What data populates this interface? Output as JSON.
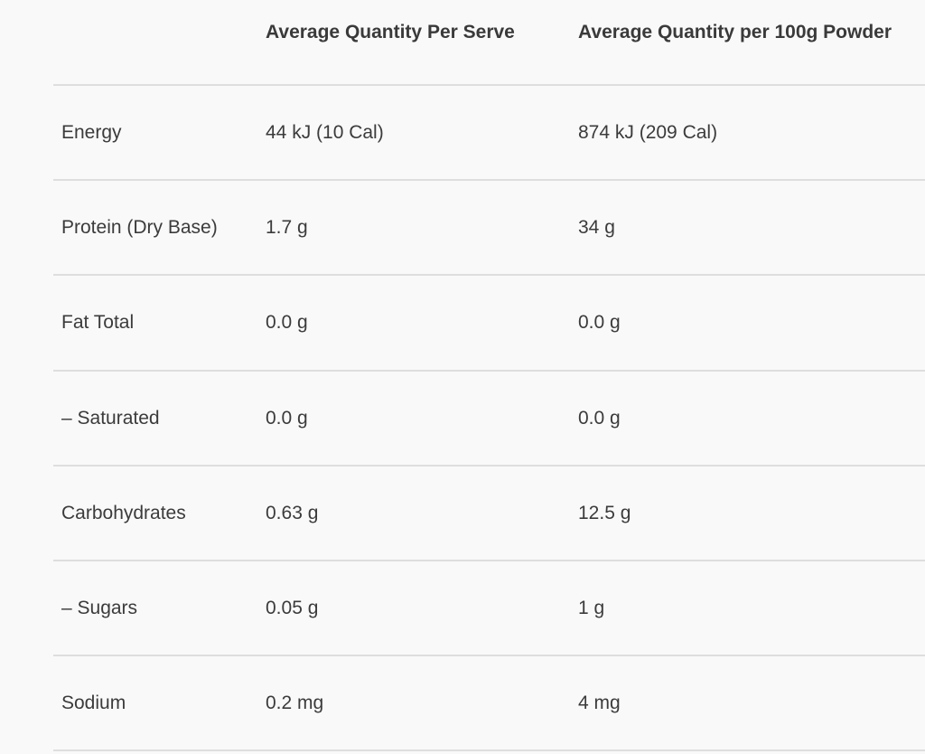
{
  "headers": [
    "",
    "Average Quantity Per Serve",
    "Average Quantity per 100g Powder"
  ],
  "rows": [
    [
      "Energy",
      "44 kJ (10 Cal)",
      "874 kJ (209 Cal)"
    ],
    [
      "Protein (Dry Base)",
      "1.7 g",
      "34 g"
    ],
    [
      "Fat Total",
      "0.0 g",
      "0.0 g"
    ],
    [
      "– Saturated",
      "0.0 g",
      "0.0 g"
    ],
    [
      "Carbohydrates",
      "0.63 g",
      "12.5 g"
    ],
    [
      "– Sugars",
      "0.05 g",
      "1 g"
    ],
    [
      "Sodium",
      "0.2 mg",
      "4 mg"
    ]
  ]
}
